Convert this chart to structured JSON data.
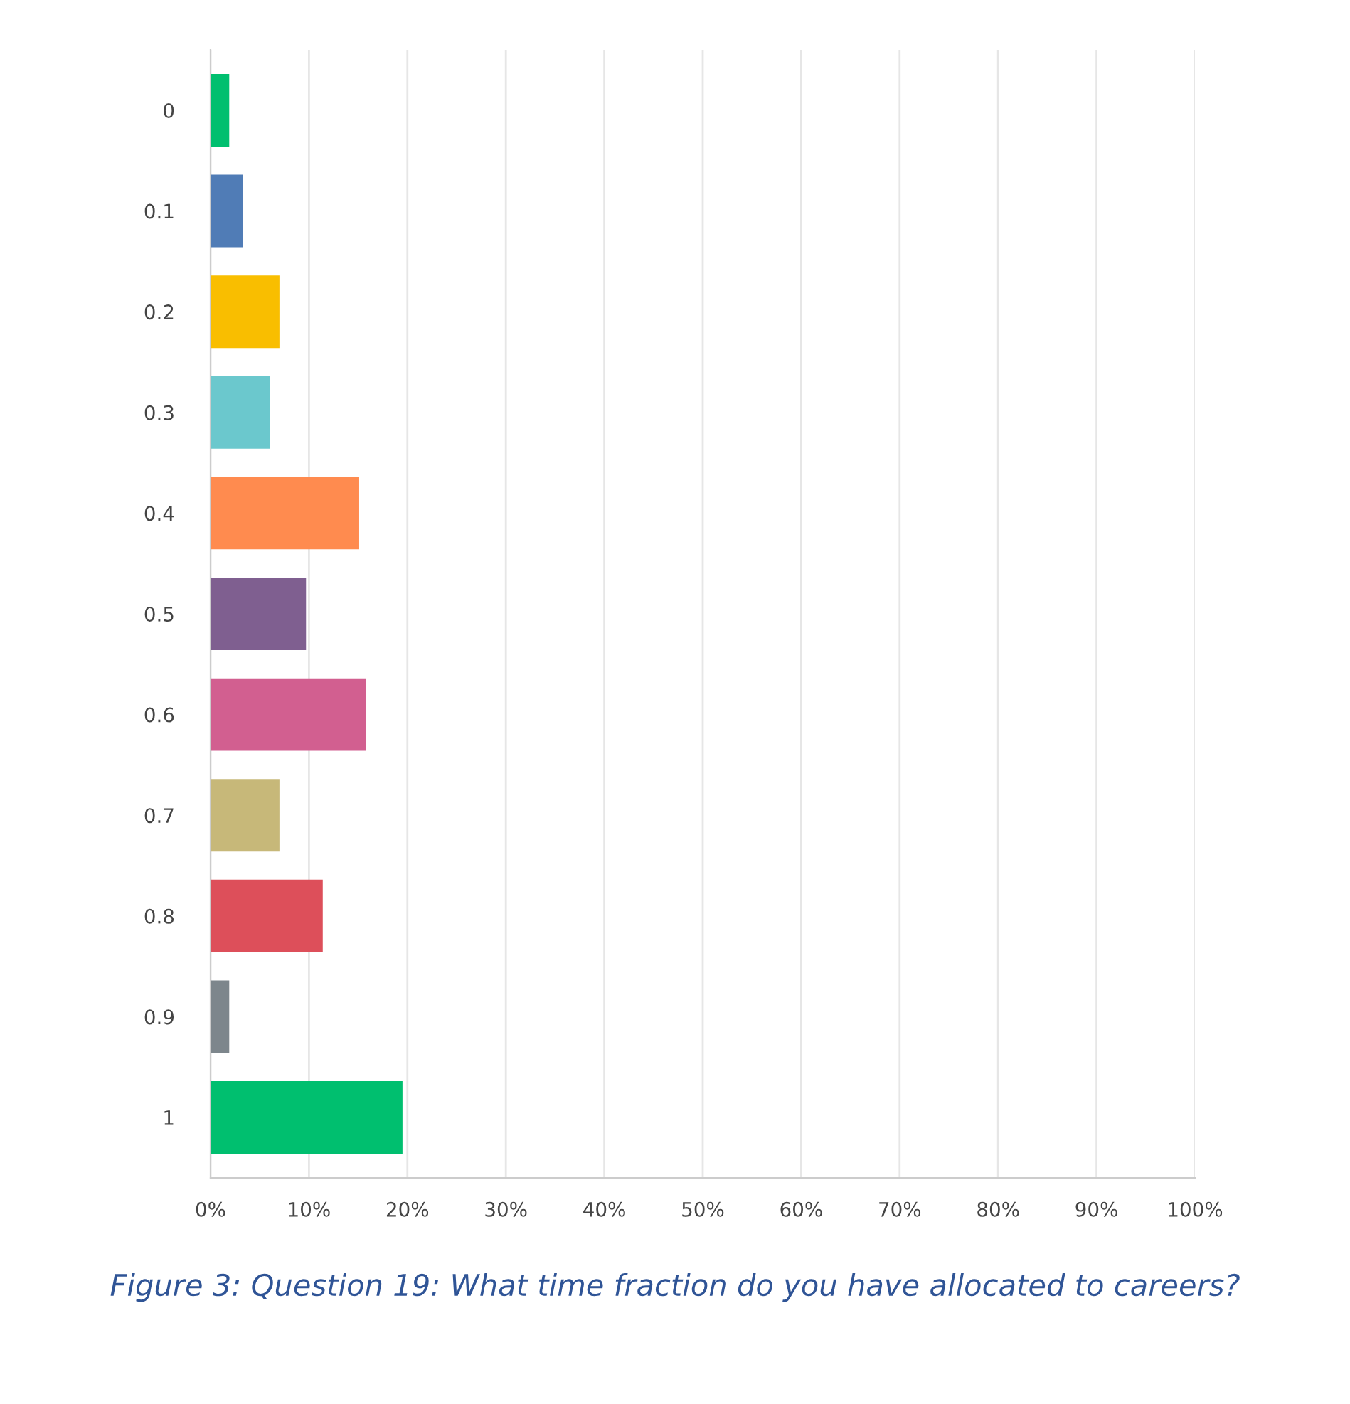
{
  "chart_data": {
    "type": "bar",
    "orientation": "horizontal",
    "categories": [
      "0",
      "0.1",
      "0.2",
      "0.3",
      "0.4",
      "0.5",
      "0.6",
      "0.7",
      "0.8",
      "0.9",
      "1"
    ],
    "values": [
      1.9,
      3.3,
      7.0,
      6.0,
      15.1,
      9.7,
      15.8,
      7.0,
      11.4,
      1.9,
      19.5
    ],
    "colors": [
      "#00bf6f",
      "#507cb6",
      "#f9be00",
      "#6bc8cd",
      "#ff8b4f",
      "#7f5f90",
      "#d25f90",
      "#c7b879",
      "#dd4f5a",
      "#7d868c",
      "#00bf6f"
    ],
    "xlim": [
      0,
      100
    ],
    "xticks": [
      {
        "value": 0,
        "label": "0%"
      },
      {
        "value": 10,
        "label": "10%"
      },
      {
        "value": 20,
        "label": "20%"
      },
      {
        "value": 30,
        "label": "30%"
      },
      {
        "value": 40,
        "label": "40%"
      },
      {
        "value": 50,
        "label": "50%"
      },
      {
        "value": 60,
        "label": "60%"
      },
      {
        "value": 70,
        "label": "70%"
      },
      {
        "value": 80,
        "label": "80%"
      },
      {
        "value": 90,
        "label": "90%"
      },
      {
        "value": 100,
        "label": "100%"
      }
    ],
    "grid": "x",
    "annotations": [
      "Figure 3: Question 19: What time fraction do you have allocated to careers?"
    ]
  }
}
